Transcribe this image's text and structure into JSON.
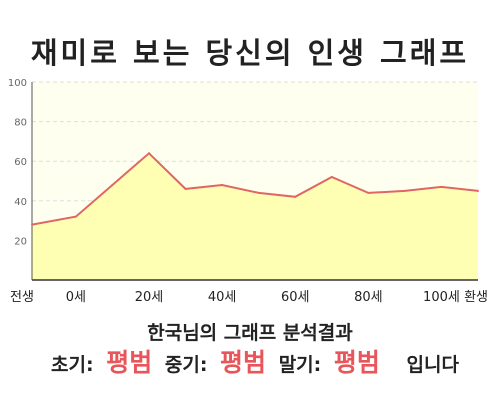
{
  "title": "재미로 보는 당신의 인생 그래프",
  "summary": "한국님의 그래프 분석결과",
  "verdict": {
    "early_label": "초기:",
    "early_value": "평범",
    "mid_label": "중기:",
    "mid_value": "평범",
    "late_label": "말기:",
    "late_value": "평범",
    "suffix": "입니다"
  },
  "colors": {
    "line": "#e06666",
    "area": "#ffffb4",
    "plot_bg": "#fffff0",
    "accent": "#e8555a"
  },
  "chart_data": {
    "type": "area",
    "x_categories": [
      "전생",
      "0세",
      "20세",
      "40세",
      "60세",
      "80세",
      "100세",
      "환생"
    ],
    "x": [
      -12,
      0,
      10,
      20,
      30,
      40,
      50,
      60,
      70,
      80,
      90,
      100,
      110
    ],
    "y": [
      28,
      32,
      48,
      64,
      46,
      48,
      44,
      42,
      52,
      44,
      45,
      47,
      45
    ],
    "ylim": [
      0,
      100
    ],
    "yticks": [
      "20",
      "40",
      "60",
      "80",
      "100"
    ],
    "xlim": [
      -12,
      110
    ],
    "grid": true
  }
}
